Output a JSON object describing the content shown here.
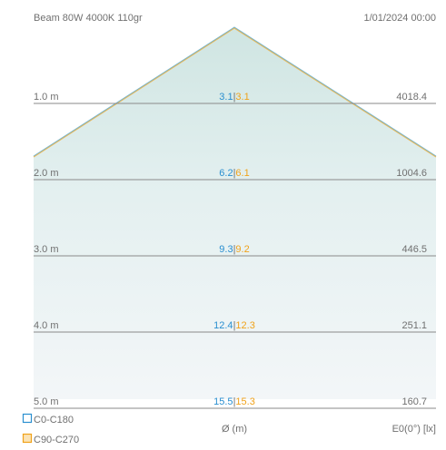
{
  "header": {
    "title": "Beam 80W 4000K 110gr",
    "timestamp": "1/01/2024 00:00"
  },
  "rows": [
    {
      "distance": "1.0 m",
      "diam_c0": "3.1",
      "diam_c90": "3.1",
      "illuminance": "4018.4"
    },
    {
      "distance": "2.0 m",
      "diam_c0": "6.2",
      "diam_c90": "6.1",
      "illuminance": "1004.6"
    },
    {
      "distance": "3.0 m",
      "diam_c0": "9.3",
      "diam_c90": "9.2",
      "illuminance": "446.5"
    },
    {
      "distance": "4.0 m",
      "diam_c0": "12.4",
      "diam_c90": "12.3",
      "illuminance": "251.1"
    },
    {
      "distance": "5.0 m",
      "diam_c0": "15.5",
      "diam_c90": "15.3",
      "illuminance": "160.7"
    }
  ],
  "separator": "|",
  "legend": {
    "c0_label": "C0-C180",
    "c90_label": "C90-C270"
  },
  "footer": {
    "diameter_label": "Ø (m)",
    "illuminance_label": "E0(0°) [lx]"
  },
  "colors": {
    "c0": "#2a8fd0",
    "c90": "#f0a21a",
    "beam_fill": "#cfe6e4",
    "gridline": "#8a8a8a",
    "text": "#707070"
  }
}
